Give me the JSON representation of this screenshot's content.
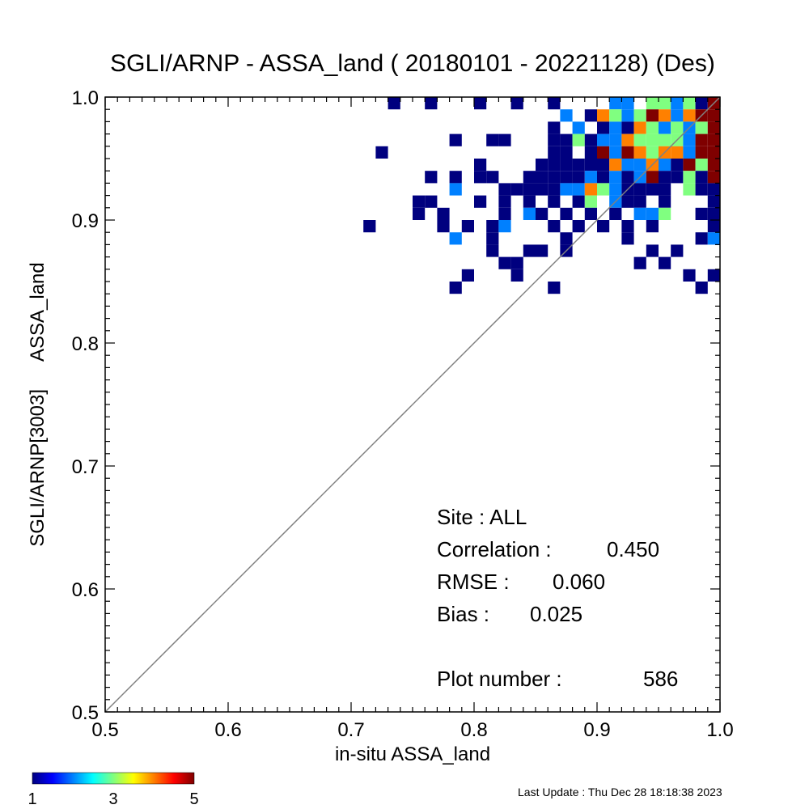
{
  "chart_data": {
    "type": "heatmap",
    "title": "SGLI/ARNP - ASSA_land ( 20180101 - 20221128) (Des)",
    "xlabel": "in-situ ASSA_land",
    "ylabel_parts": [
      "SGLI/ARNP[3003]",
      "ASSA_land"
    ],
    "xlim": [
      0.5,
      1.0
    ],
    "ylim": [
      0.5,
      1.0
    ],
    "x_ticks": [
      "0.5",
      "0.6",
      "0.7",
      "0.8",
      "0.9",
      "1.0"
    ],
    "y_ticks": [
      "0.5",
      "0.6",
      "0.7",
      "0.8",
      "0.9",
      "1.0"
    ],
    "grid": false,
    "reference_line": "1:1",
    "bin_size": 0.01,
    "stats": {
      "site": "Site : ALL",
      "correlation_label": "Correlation :",
      "correlation_value": "0.450",
      "rmse_label": "RMSE :",
      "rmse_value": "0.060",
      "bias_label": "Bias :",
      "bias_value": "0.025",
      "plot_number_label": "Plot number :",
      "plot_number_value": "586"
    },
    "colorbar": {
      "min": 1,
      "max": 5,
      "tick_labels": [
        "1",
        "3",
        "5"
      ]
    },
    "cells": [
      {
        "x": 0.735,
        "y": 0.995,
        "count": 1
      },
      {
        "x": 0.765,
        "y": 0.995,
        "count": 1
      },
      {
        "x": 0.805,
        "y": 0.995,
        "count": 1
      },
      {
        "x": 0.835,
        "y": 0.995,
        "count": 1
      },
      {
        "x": 0.865,
        "y": 0.995,
        "count": 1
      },
      {
        "x": 0.915,
        "y": 0.995,
        "count": 2
      },
      {
        "x": 0.925,
        "y": 0.995,
        "count": 2
      },
      {
        "x": 0.945,
        "y": 0.995,
        "count": 3
      },
      {
        "x": 0.955,
        "y": 0.995,
        "count": 3
      },
      {
        "x": 0.965,
        "y": 0.995,
        "count": 2
      },
      {
        "x": 0.975,
        "y": 0.995,
        "count": 3
      },
      {
        "x": 0.985,
        "y": 0.995,
        "count": 1
      },
      {
        "x": 0.995,
        "y": 0.995,
        "count": 5
      },
      {
        "x": 0.875,
        "y": 0.985,
        "count": 2
      },
      {
        "x": 0.895,
        "y": 0.985,
        "count": 1
      },
      {
        "x": 0.905,
        "y": 0.985,
        "count": 4
      },
      {
        "x": 0.915,
        "y": 0.985,
        "count": 3
      },
      {
        "x": 0.925,
        "y": 0.985,
        "count": 2
      },
      {
        "x": 0.935,
        "y": 0.985,
        "count": 3
      },
      {
        "x": 0.945,
        "y": 0.985,
        "count": 5
      },
      {
        "x": 0.955,
        "y": 0.985,
        "count": 4
      },
      {
        "x": 0.965,
        "y": 0.985,
        "count": 2
      },
      {
        "x": 0.975,
        "y": 0.985,
        "count": 4
      },
      {
        "x": 0.985,
        "y": 0.985,
        "count": 5
      },
      {
        "x": 0.995,
        "y": 0.985,
        "count": 5
      },
      {
        "x": 0.865,
        "y": 0.975,
        "count": 1
      },
      {
        "x": 0.885,
        "y": 0.975,
        "count": 2
      },
      {
        "x": 0.905,
        "y": 0.975,
        "count": 1
      },
      {
        "x": 0.915,
        "y": 0.975,
        "count": 2
      },
      {
        "x": 0.925,
        "y": 0.975,
        "count": 1
      },
      {
        "x": 0.935,
        "y": 0.975,
        "count": 4
      },
      {
        "x": 0.945,
        "y": 0.975,
        "count": 3
      },
      {
        "x": 0.955,
        "y": 0.975,
        "count": 2
      },
      {
        "x": 0.965,
        "y": 0.975,
        "count": 3
      },
      {
        "x": 0.975,
        "y": 0.975,
        "count": 2
      },
      {
        "x": 0.985,
        "y": 0.975,
        "count": 3
      },
      {
        "x": 0.995,
        "y": 0.975,
        "count": 5
      },
      {
        "x": 0.785,
        "y": 0.965,
        "count": 1
      },
      {
        "x": 0.815,
        "y": 0.965,
        "count": 1
      },
      {
        "x": 0.825,
        "y": 0.965,
        "count": 1
      },
      {
        "x": 0.865,
        "y": 0.965,
        "count": 1
      },
      {
        "x": 0.875,
        "y": 0.965,
        "count": 1
      },
      {
        "x": 0.885,
        "y": 0.965,
        "count": 3
      },
      {
        "x": 0.895,
        "y": 0.965,
        "count": 1
      },
      {
        "x": 0.905,
        "y": 0.965,
        "count": 2
      },
      {
        "x": 0.915,
        "y": 0.965,
        "count": 2
      },
      {
        "x": 0.925,
        "y": 0.965,
        "count": 4
      },
      {
        "x": 0.935,
        "y": 0.965,
        "count": 3
      },
      {
        "x": 0.945,
        "y": 0.965,
        "count": 3
      },
      {
        "x": 0.955,
        "y": 0.965,
        "count": 3
      },
      {
        "x": 0.965,
        "y": 0.965,
        "count": 3
      },
      {
        "x": 0.975,
        "y": 0.965,
        "count": 2
      },
      {
        "x": 0.985,
        "y": 0.965,
        "count": 5
      },
      {
        "x": 0.995,
        "y": 0.965,
        "count": 5
      },
      {
        "x": 0.725,
        "y": 0.955,
        "count": 1
      },
      {
        "x": 0.865,
        "y": 0.955,
        "count": 1
      },
      {
        "x": 0.875,
        "y": 0.955,
        "count": 1
      },
      {
        "x": 0.895,
        "y": 0.955,
        "count": 1
      },
      {
        "x": 0.905,
        "y": 0.955,
        "count": 5
      },
      {
        "x": 0.915,
        "y": 0.955,
        "count": 2
      },
      {
        "x": 0.925,
        "y": 0.955,
        "count": 5
      },
      {
        "x": 0.935,
        "y": 0.955,
        "count": 4
      },
      {
        "x": 0.945,
        "y": 0.955,
        "count": 3
      },
      {
        "x": 0.955,
        "y": 0.955,
        "count": 4
      },
      {
        "x": 0.965,
        "y": 0.955,
        "count": 4
      },
      {
        "x": 0.975,
        "y": 0.955,
        "count": 2
      },
      {
        "x": 0.985,
        "y": 0.955,
        "count": 5
      },
      {
        "x": 0.995,
        "y": 0.955,
        "count": 5
      },
      {
        "x": 0.805,
        "y": 0.945,
        "count": 1
      },
      {
        "x": 0.855,
        "y": 0.945,
        "count": 1
      },
      {
        "x": 0.865,
        "y": 0.945,
        "count": 1
      },
      {
        "x": 0.875,
        "y": 0.945,
        "count": 1
      },
      {
        "x": 0.885,
        "y": 0.945,
        "count": 1
      },
      {
        "x": 0.895,
        "y": 0.945,
        "count": 1
      },
      {
        "x": 0.905,
        "y": 0.945,
        "count": 1
      },
      {
        "x": 0.915,
        "y": 0.945,
        "count": 4
      },
      {
        "x": 0.925,
        "y": 0.945,
        "count": 2
      },
      {
        "x": 0.935,
        "y": 0.945,
        "count": 2
      },
      {
        "x": 0.945,
        "y": 0.945,
        "count": 4
      },
      {
        "x": 0.955,
        "y": 0.945,
        "count": 2
      },
      {
        "x": 0.965,
        "y": 0.945,
        "count": 1
      },
      {
        "x": 0.975,
        "y": 0.945,
        "count": 5
      },
      {
        "x": 0.985,
        "y": 0.945,
        "count": 3
      },
      {
        "x": 0.995,
        "y": 0.945,
        "count": 5
      },
      {
        "x": 0.765,
        "y": 0.935,
        "count": 1
      },
      {
        "x": 0.785,
        "y": 0.935,
        "count": 1
      },
      {
        "x": 0.805,
        "y": 0.935,
        "count": 1
      },
      {
        "x": 0.815,
        "y": 0.935,
        "count": 1
      },
      {
        "x": 0.845,
        "y": 0.935,
        "count": 1
      },
      {
        "x": 0.855,
        "y": 0.935,
        "count": 1
      },
      {
        "x": 0.865,
        "y": 0.935,
        "count": 1
      },
      {
        "x": 0.875,
        "y": 0.935,
        "count": 1
      },
      {
        "x": 0.885,
        "y": 0.935,
        "count": 1
      },
      {
        "x": 0.895,
        "y": 0.935,
        "count": 2
      },
      {
        "x": 0.905,
        "y": 0.935,
        "count": 1
      },
      {
        "x": 0.915,
        "y": 0.935,
        "count": 2
      },
      {
        "x": 0.925,
        "y": 0.935,
        "count": 1
      },
      {
        "x": 0.935,
        "y": 0.935,
        "count": 2
      },
      {
        "x": 0.945,
        "y": 0.935,
        "count": 5
      },
      {
        "x": 0.955,
        "y": 0.935,
        "count": 1
      },
      {
        "x": 0.965,
        "y": 0.935,
        "count": 1
      },
      {
        "x": 0.975,
        "y": 0.935,
        "count": 3
      },
      {
        "x": 0.985,
        "y": 0.935,
        "count": 1
      },
      {
        "x": 0.995,
        "y": 0.935,
        "count": 5
      },
      {
        "x": 0.785,
        "y": 0.925,
        "count": 2
      },
      {
        "x": 0.825,
        "y": 0.925,
        "count": 1
      },
      {
        "x": 0.835,
        "y": 0.925,
        "count": 1
      },
      {
        "x": 0.845,
        "y": 0.925,
        "count": 1
      },
      {
        "x": 0.855,
        "y": 0.925,
        "count": 1
      },
      {
        "x": 0.865,
        "y": 0.925,
        "count": 1
      },
      {
        "x": 0.875,
        "y": 0.925,
        "count": 2
      },
      {
        "x": 0.885,
        "y": 0.925,
        "count": 2
      },
      {
        "x": 0.895,
        "y": 0.925,
        "count": 4
      },
      {
        "x": 0.905,
        "y": 0.925,
        "count": 3
      },
      {
        "x": 0.915,
        "y": 0.925,
        "count": 2
      },
      {
        "x": 0.925,
        "y": 0.925,
        "count": 1
      },
      {
        "x": 0.935,
        "y": 0.925,
        "count": 1
      },
      {
        "x": 0.945,
        "y": 0.925,
        "count": 1
      },
      {
        "x": 0.955,
        "y": 0.925,
        "count": 1
      },
      {
        "x": 0.975,
        "y": 0.925,
        "count": 3
      },
      {
        "x": 0.985,
        "y": 0.925,
        "count": 1
      },
      {
        "x": 0.995,
        "y": 0.925,
        "count": 1
      },
      {
        "x": 0.755,
        "y": 0.915,
        "count": 1
      },
      {
        "x": 0.765,
        "y": 0.915,
        "count": 1
      },
      {
        "x": 0.805,
        "y": 0.915,
        "count": 1
      },
      {
        "x": 0.825,
        "y": 0.915,
        "count": 1
      },
      {
        "x": 0.845,
        "y": 0.915,
        "count": 1
      },
      {
        "x": 0.865,
        "y": 0.915,
        "count": 1
      },
      {
        "x": 0.885,
        "y": 0.915,
        "count": 1
      },
      {
        "x": 0.895,
        "y": 0.915,
        "count": 3
      },
      {
        "x": 0.915,
        "y": 0.915,
        "count": 2
      },
      {
        "x": 0.925,
        "y": 0.915,
        "count": 1
      },
      {
        "x": 0.935,
        "y": 0.915,
        "count": 1
      },
      {
        "x": 0.955,
        "y": 0.915,
        "count": 1
      },
      {
        "x": 0.995,
        "y": 0.915,
        "count": 1
      },
      {
        "x": 0.755,
        "y": 0.905,
        "count": 1
      },
      {
        "x": 0.775,
        "y": 0.905,
        "count": 1
      },
      {
        "x": 0.825,
        "y": 0.905,
        "count": 1
      },
      {
        "x": 0.845,
        "y": 0.905,
        "count": 2
      },
      {
        "x": 0.855,
        "y": 0.905,
        "count": 1
      },
      {
        "x": 0.875,
        "y": 0.905,
        "count": 1
      },
      {
        "x": 0.895,
        "y": 0.905,
        "count": 1
      },
      {
        "x": 0.915,
        "y": 0.905,
        "count": 1
      },
      {
        "x": 0.935,
        "y": 0.905,
        "count": 2
      },
      {
        "x": 0.945,
        "y": 0.905,
        "count": 2
      },
      {
        "x": 0.955,
        "y": 0.905,
        "count": 3
      },
      {
        "x": 0.985,
        "y": 0.905,
        "count": 1
      },
      {
        "x": 0.995,
        "y": 0.905,
        "count": 1
      },
      {
        "x": 0.775,
        "y": 0.895,
        "count": 1
      },
      {
        "x": 0.795,
        "y": 0.895,
        "count": 1
      },
      {
        "x": 0.815,
        "y": 0.895,
        "count": 1
      },
      {
        "x": 0.825,
        "y": 0.895,
        "count": 2
      },
      {
        "x": 0.865,
        "y": 0.895,
        "count": 1
      },
      {
        "x": 0.905,
        "y": 0.895,
        "count": 1
      },
      {
        "x": 0.925,
        "y": 0.895,
        "count": 1
      },
      {
        "x": 0.945,
        "y": 0.895,
        "count": 1
      },
      {
        "x": 0.995,
        "y": 0.895,
        "count": 1
      },
      {
        "x": 0.715,
        "y": 0.895,
        "count": 1
      },
      {
        "x": 0.885,
        "y": 0.895,
        "count": 1
      },
      {
        "x": 0.785,
        "y": 0.885,
        "count": 2
      },
      {
        "x": 0.815,
        "y": 0.885,
        "count": 1
      },
      {
        "x": 0.875,
        "y": 0.885,
        "count": 1
      },
      {
        "x": 0.925,
        "y": 0.885,
        "count": 1
      },
      {
        "x": 0.985,
        "y": 0.885,
        "count": 1
      },
      {
        "x": 0.995,
        "y": 0.885,
        "count": 2
      },
      {
        "x": 0.815,
        "y": 0.875,
        "count": 1
      },
      {
        "x": 0.845,
        "y": 0.875,
        "count": 1
      },
      {
        "x": 0.855,
        "y": 0.875,
        "count": 1
      },
      {
        "x": 0.875,
        "y": 0.875,
        "count": 1
      },
      {
        "x": 0.945,
        "y": 0.875,
        "count": 1
      },
      {
        "x": 0.965,
        "y": 0.875,
        "count": 1
      },
      {
        "x": 0.825,
        "y": 0.865,
        "count": 1
      },
      {
        "x": 0.835,
        "y": 0.865,
        "count": 1
      },
      {
        "x": 0.935,
        "y": 0.865,
        "count": 1
      },
      {
        "x": 0.955,
        "y": 0.865,
        "count": 1
      },
      {
        "x": 0.795,
        "y": 0.855,
        "count": 1
      },
      {
        "x": 0.835,
        "y": 0.855,
        "count": 1
      },
      {
        "x": 0.975,
        "y": 0.855,
        "count": 1
      },
      {
        "x": 0.995,
        "y": 0.855,
        "count": 1
      },
      {
        "x": 0.785,
        "y": 0.845,
        "count": 1
      },
      {
        "x": 0.865,
        "y": 0.845,
        "count": 1
      },
      {
        "x": 0.985,
        "y": 0.845,
        "count": 1
      }
    ]
  },
  "footer": {
    "last_update": "Last Update : Thu Dec 28 18:18:38 2023"
  }
}
